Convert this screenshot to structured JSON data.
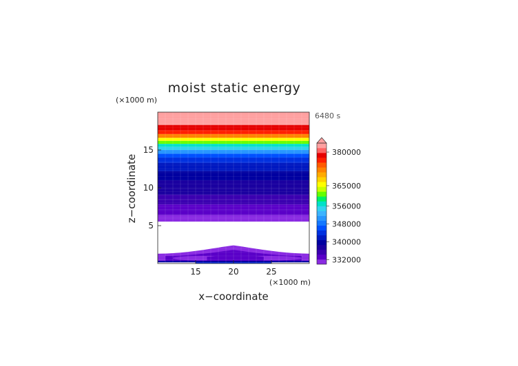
{
  "chart_data": {
    "type": "heatmap",
    "title": "moist static energy",
    "time_label": "6480 s",
    "xlabel": "x−coordinate",
    "ylabel": "z−coordinate",
    "x_unit": "(×1000 m)",
    "y_unit": "(×1000 m)",
    "xlim": [
      10,
      30
    ],
    "ylim": [
      0,
      20
    ],
    "x_ticks": [
      "15",
      "20",
      "25"
    ],
    "x_tick_values": [
      15,
      20,
      25
    ],
    "y_ticks": [
      "5",
      "10",
      "15"
    ],
    "y_tick_values": [
      5,
      10,
      15
    ],
    "colorbar": {
      "min": 330000,
      "max": 384000,
      "tick_labels": [
        "380000",
        "365000",
        "356000",
        "348000",
        "340000",
        "332000"
      ],
      "tick_values": [
        380000,
        365000,
        356000,
        348000,
        340000,
        332000
      ],
      "extend": "max",
      "colors": [
        "#8a2be2",
        "#5a00c8",
        "#3a00b0",
        "#1a00a0",
        "#0000a0",
        "#0018c0",
        "#0030e0",
        "#0050ff",
        "#1478ff",
        "#2896ff",
        "#3cb4ff",
        "#32d2f0",
        "#00e1c8",
        "#00f064",
        "#64ff00",
        "#c8ff00",
        "#ffff00",
        "#ffd200",
        "#ffaa00",
        "#ff8200",
        "#ff5a00",
        "#ff1e00",
        "#e60000",
        "#ff6464",
        "#ffa0a0"
      ]
    },
    "field_bands": [
      {
        "z0": 19.1,
        "z1": 20.0,
        "value": 384000
      },
      {
        "z0": 18.3,
        "z1": 19.1,
        "value": 382000
      },
      {
        "z0": 17.6,
        "z1": 18.3,
        "value": 379000
      },
      {
        "z0": 17.1,
        "z1": 17.6,
        "value": 376000
      },
      {
        "z0": 16.6,
        "z1": 17.1,
        "value": 372000
      },
      {
        "z0": 16.2,
        "z1": 16.6,
        "value": 366000
      },
      {
        "z0": 15.8,
        "z1": 16.2,
        "value": 362000
      },
      {
        "z0": 15.4,
        "z1": 15.8,
        "value": 357000
      },
      {
        "z0": 15.0,
        "z1": 15.4,
        "value": 354000
      },
      {
        "z0": 14.5,
        "z1": 15.0,
        "value": 350000
      },
      {
        "z0": 14.0,
        "z1": 14.5,
        "value": 347000
      },
      {
        "z0": 13.3,
        "z1": 14.0,
        "value": 344000
      },
      {
        "z0": 12.2,
        "z1": 13.3,
        "value": 342000
      },
      {
        "z0": 11.0,
        "z1": 12.2,
        "value": 340000
      },
      {
        "z0": 9.9,
        "z1": 11.0,
        "value": 338500
      },
      {
        "z0": 9.1,
        "z1": 9.9,
        "value": 337500
      },
      {
        "z0": 8.4,
        "z1": 9.1,
        "value": 336000
      },
      {
        "z0": 7.8,
        "z1": 8.4,
        "value": 335000
      },
      {
        "z0": 7.1,
        "z1": 7.8,
        "value": 334000
      },
      {
        "z0": 6.4,
        "z1": 7.1,
        "value": 332500
      },
      {
        "z0": 5.7,
        "z1": 6.4,
        "value": 331000
      }
    ],
    "lower_features": [
      {
        "kind": "dome",
        "x0": 10.0,
        "x1": 30.0,
        "z0": 0.3,
        "z1": 1.3,
        "peak": 2.4,
        "value": 331000
      },
      {
        "kind": "dome",
        "x0": 11.0,
        "x1": 29.0,
        "z0": 0.3,
        "z1": 1.0,
        "peak": 1.8,
        "value": 332500
      },
      {
        "kind": "blob",
        "x0": 12.0,
        "x1": 20.0,
        "z0": 0.4,
        "z1": 1.0,
        "value": 331000
      },
      {
        "kind": "blob",
        "x0": 20.5,
        "x1": 29.0,
        "z0": 0.4,
        "z1": 1.0,
        "value": 331000
      },
      {
        "kind": "dome",
        "x0": 16.5,
        "x1": 24.0,
        "z0": 0.3,
        "z1": 0.9,
        "peak": 1.5,
        "value": 334000
      },
      {
        "kind": "band",
        "x0": 10.0,
        "x1": 30.0,
        "z0": 0.15,
        "z1": 0.35,
        "value": 340000
      },
      {
        "kind": "band",
        "x0": 15.0,
        "x1": 25.0,
        "z0": 0.0,
        "z1": 0.15,
        "value": 345000
      }
    ]
  }
}
